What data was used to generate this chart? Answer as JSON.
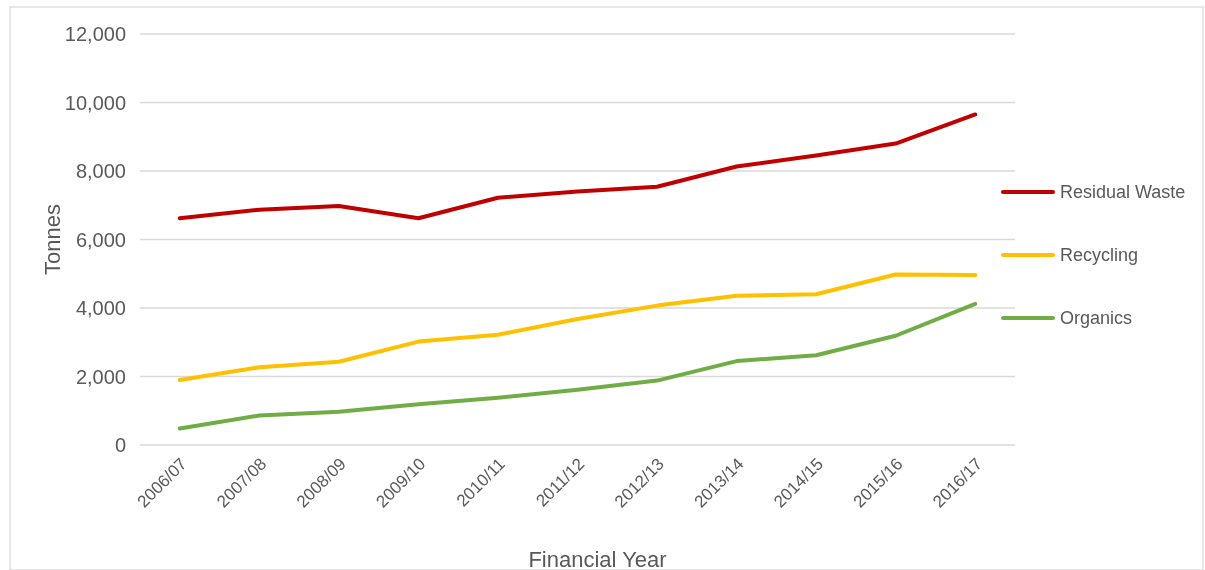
{
  "chart_data": {
    "type": "line",
    "xlabel": "Financial Year",
    "ylabel": "Tonnes",
    "categories": [
      "2006/07",
      "2007/08",
      "2008/09",
      "2009/10",
      "2010/11",
      "2011/12",
      "2012/13",
      "2013/14",
      "2014/15",
      "2015/16",
      "2016/17"
    ],
    "series": [
      {
        "name": "Residual Waste",
        "color": "#c00000",
        "values": [
          6620,
          6870,
          6980,
          6620,
          7220,
          7400,
          7540,
          8130,
          8450,
          8800,
          9650
        ]
      },
      {
        "name": "Recycling",
        "color": "#ffc000",
        "values": [
          1900,
          2270,
          2430,
          3020,
          3220,
          3680,
          4070,
          4360,
          4400,
          4980,
          4960
        ]
      },
      {
        "name": "Organics",
        "color": "#70ad47",
        "values": [
          480,
          860,
          970,
          1190,
          1380,
          1610,
          1880,
          2450,
          2620,
          3190,
          4120
        ]
      }
    ],
    "ylim": [
      0,
      12000
    ],
    "yticks": [
      {
        "value": 0,
        "label": "0"
      },
      {
        "value": 2000,
        "label": "2,000"
      },
      {
        "value": 4000,
        "label": "4,000"
      },
      {
        "value": 6000,
        "label": "6,000"
      },
      {
        "value": 8000,
        "label": "8,000"
      },
      {
        "value": 10000,
        "label": "10,000"
      },
      {
        "value": 12000,
        "label": "12,000"
      }
    ],
    "grid": "y",
    "legend": "right",
    "marker": "none",
    "line_style": "solid"
  }
}
